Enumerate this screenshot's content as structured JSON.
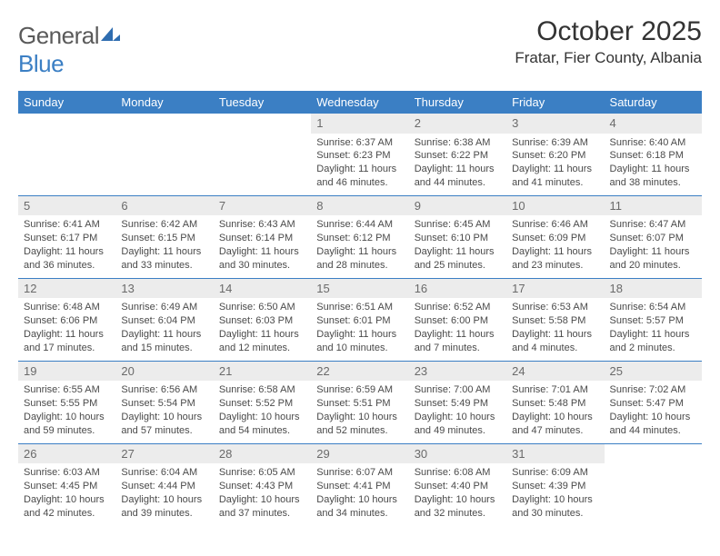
{
  "logo": {
    "text_general": "General",
    "text_blue": "Blue",
    "shape_color": "#2f6db0"
  },
  "title": "October 2025",
  "location": "Fratar, Fier County, Albania",
  "colors": {
    "header_bg": "#3b7fc4",
    "header_text": "#ffffff",
    "daynum_bg": "#ececec",
    "daynum_text": "#6a6a6a",
    "border": "#3b7fc4",
    "body_text": "#4a4a4a"
  },
  "weekdays": [
    "Sunday",
    "Monday",
    "Tuesday",
    "Wednesday",
    "Thursday",
    "Friday",
    "Saturday"
  ],
  "weeks": [
    [
      null,
      null,
      null,
      {
        "day": "1",
        "sunrise": "Sunrise: 6:37 AM",
        "sunset": "Sunset: 6:23 PM",
        "daylight1": "Daylight: 11 hours",
        "daylight2": "and 46 minutes."
      },
      {
        "day": "2",
        "sunrise": "Sunrise: 6:38 AM",
        "sunset": "Sunset: 6:22 PM",
        "daylight1": "Daylight: 11 hours",
        "daylight2": "and 44 minutes."
      },
      {
        "day": "3",
        "sunrise": "Sunrise: 6:39 AM",
        "sunset": "Sunset: 6:20 PM",
        "daylight1": "Daylight: 11 hours",
        "daylight2": "and 41 minutes."
      },
      {
        "day": "4",
        "sunrise": "Sunrise: 6:40 AM",
        "sunset": "Sunset: 6:18 PM",
        "daylight1": "Daylight: 11 hours",
        "daylight2": "and 38 minutes."
      }
    ],
    [
      {
        "day": "5",
        "sunrise": "Sunrise: 6:41 AM",
        "sunset": "Sunset: 6:17 PM",
        "daylight1": "Daylight: 11 hours",
        "daylight2": "and 36 minutes."
      },
      {
        "day": "6",
        "sunrise": "Sunrise: 6:42 AM",
        "sunset": "Sunset: 6:15 PM",
        "daylight1": "Daylight: 11 hours",
        "daylight2": "and 33 minutes."
      },
      {
        "day": "7",
        "sunrise": "Sunrise: 6:43 AM",
        "sunset": "Sunset: 6:14 PM",
        "daylight1": "Daylight: 11 hours",
        "daylight2": "and 30 minutes."
      },
      {
        "day": "8",
        "sunrise": "Sunrise: 6:44 AM",
        "sunset": "Sunset: 6:12 PM",
        "daylight1": "Daylight: 11 hours",
        "daylight2": "and 28 minutes."
      },
      {
        "day": "9",
        "sunrise": "Sunrise: 6:45 AM",
        "sunset": "Sunset: 6:10 PM",
        "daylight1": "Daylight: 11 hours",
        "daylight2": "and 25 minutes."
      },
      {
        "day": "10",
        "sunrise": "Sunrise: 6:46 AM",
        "sunset": "Sunset: 6:09 PM",
        "daylight1": "Daylight: 11 hours",
        "daylight2": "and 23 minutes."
      },
      {
        "day": "11",
        "sunrise": "Sunrise: 6:47 AM",
        "sunset": "Sunset: 6:07 PM",
        "daylight1": "Daylight: 11 hours",
        "daylight2": "and 20 minutes."
      }
    ],
    [
      {
        "day": "12",
        "sunrise": "Sunrise: 6:48 AM",
        "sunset": "Sunset: 6:06 PM",
        "daylight1": "Daylight: 11 hours",
        "daylight2": "and 17 minutes."
      },
      {
        "day": "13",
        "sunrise": "Sunrise: 6:49 AM",
        "sunset": "Sunset: 6:04 PM",
        "daylight1": "Daylight: 11 hours",
        "daylight2": "and 15 minutes."
      },
      {
        "day": "14",
        "sunrise": "Sunrise: 6:50 AM",
        "sunset": "Sunset: 6:03 PM",
        "daylight1": "Daylight: 11 hours",
        "daylight2": "and 12 minutes."
      },
      {
        "day": "15",
        "sunrise": "Sunrise: 6:51 AM",
        "sunset": "Sunset: 6:01 PM",
        "daylight1": "Daylight: 11 hours",
        "daylight2": "and 10 minutes."
      },
      {
        "day": "16",
        "sunrise": "Sunrise: 6:52 AM",
        "sunset": "Sunset: 6:00 PM",
        "daylight1": "Daylight: 11 hours",
        "daylight2": "and 7 minutes."
      },
      {
        "day": "17",
        "sunrise": "Sunrise: 6:53 AM",
        "sunset": "Sunset: 5:58 PM",
        "daylight1": "Daylight: 11 hours",
        "daylight2": "and 4 minutes."
      },
      {
        "day": "18",
        "sunrise": "Sunrise: 6:54 AM",
        "sunset": "Sunset: 5:57 PM",
        "daylight1": "Daylight: 11 hours",
        "daylight2": "and 2 minutes."
      }
    ],
    [
      {
        "day": "19",
        "sunrise": "Sunrise: 6:55 AM",
        "sunset": "Sunset: 5:55 PM",
        "daylight1": "Daylight: 10 hours",
        "daylight2": "and 59 minutes."
      },
      {
        "day": "20",
        "sunrise": "Sunrise: 6:56 AM",
        "sunset": "Sunset: 5:54 PM",
        "daylight1": "Daylight: 10 hours",
        "daylight2": "and 57 minutes."
      },
      {
        "day": "21",
        "sunrise": "Sunrise: 6:58 AM",
        "sunset": "Sunset: 5:52 PM",
        "daylight1": "Daylight: 10 hours",
        "daylight2": "and 54 minutes."
      },
      {
        "day": "22",
        "sunrise": "Sunrise: 6:59 AM",
        "sunset": "Sunset: 5:51 PM",
        "daylight1": "Daylight: 10 hours",
        "daylight2": "and 52 minutes."
      },
      {
        "day": "23",
        "sunrise": "Sunrise: 7:00 AM",
        "sunset": "Sunset: 5:49 PM",
        "daylight1": "Daylight: 10 hours",
        "daylight2": "and 49 minutes."
      },
      {
        "day": "24",
        "sunrise": "Sunrise: 7:01 AM",
        "sunset": "Sunset: 5:48 PM",
        "daylight1": "Daylight: 10 hours",
        "daylight2": "and 47 minutes."
      },
      {
        "day": "25",
        "sunrise": "Sunrise: 7:02 AM",
        "sunset": "Sunset: 5:47 PM",
        "daylight1": "Daylight: 10 hours",
        "daylight2": "and 44 minutes."
      }
    ],
    [
      {
        "day": "26",
        "sunrise": "Sunrise: 6:03 AM",
        "sunset": "Sunset: 4:45 PM",
        "daylight1": "Daylight: 10 hours",
        "daylight2": "and 42 minutes."
      },
      {
        "day": "27",
        "sunrise": "Sunrise: 6:04 AM",
        "sunset": "Sunset: 4:44 PM",
        "daylight1": "Daylight: 10 hours",
        "daylight2": "and 39 minutes."
      },
      {
        "day": "28",
        "sunrise": "Sunrise: 6:05 AM",
        "sunset": "Sunset: 4:43 PM",
        "daylight1": "Daylight: 10 hours",
        "daylight2": "and 37 minutes."
      },
      {
        "day": "29",
        "sunrise": "Sunrise: 6:07 AM",
        "sunset": "Sunset: 4:41 PM",
        "daylight1": "Daylight: 10 hours",
        "daylight2": "and 34 minutes."
      },
      {
        "day": "30",
        "sunrise": "Sunrise: 6:08 AM",
        "sunset": "Sunset: 4:40 PM",
        "daylight1": "Daylight: 10 hours",
        "daylight2": "and 32 minutes."
      },
      {
        "day": "31",
        "sunrise": "Sunrise: 6:09 AM",
        "sunset": "Sunset: 4:39 PM",
        "daylight1": "Daylight: 10 hours",
        "daylight2": "and 30 minutes."
      },
      null
    ]
  ]
}
